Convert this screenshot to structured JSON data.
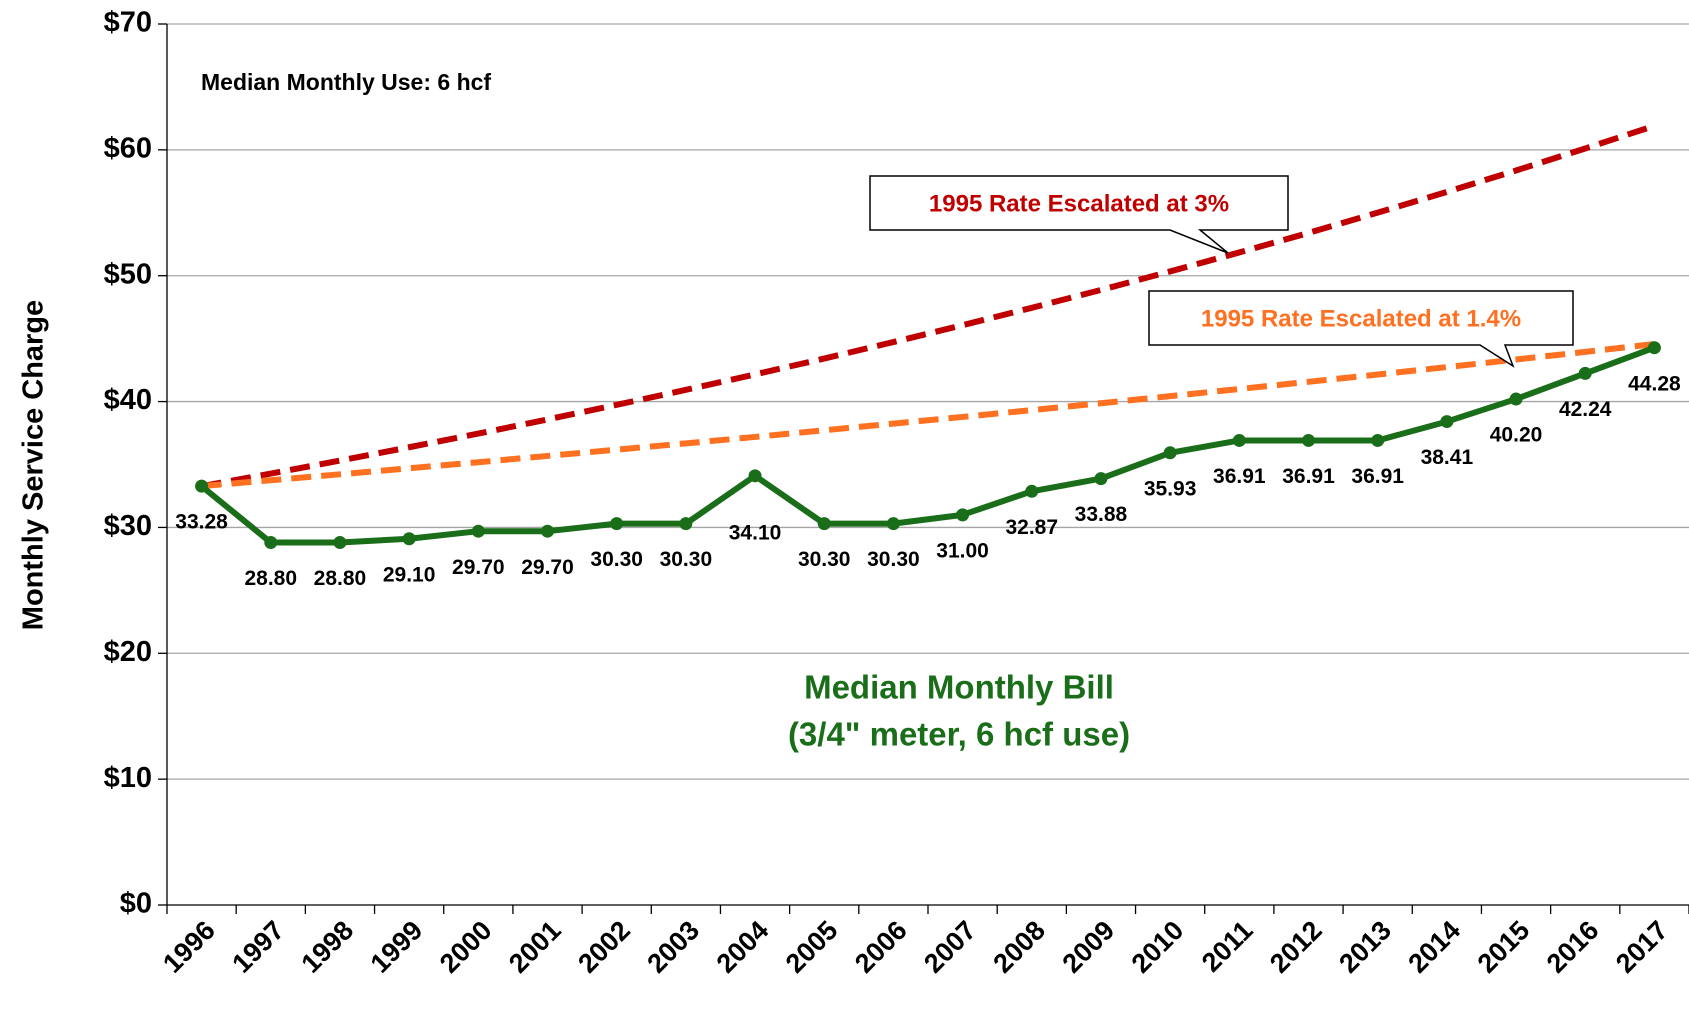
{
  "chart_data": {
    "type": "line",
    "annotation_top": "Median Monthly Use: 6 hcf",
    "ylabel": "Monthly Service Charge",
    "series_annotation": [
      "Median Monthly Bill",
      "(3/4\" meter, 6 hcf use)"
    ],
    "callouts": [
      "1995 Rate Escalated at 3%",
      "1995 Rate Escalated at 1.4%"
    ],
    "categories": [
      "1996",
      "1997",
      "1998",
      "1999",
      "2000",
      "2001",
      "2002",
      "2003",
      "2004",
      "2005",
      "2006",
      "2007",
      "2008",
      "2009",
      "2010",
      "2011",
      "2012",
      "2013",
      "2014",
      "2015",
      "2016",
      "2017"
    ],
    "ylim": [
      0,
      70
    ],
    "yticks": [
      {
        "value": 0,
        "label": "$0"
      },
      {
        "value": 10,
        "label": "$10"
      },
      {
        "value": 20,
        "label": "$20"
      },
      {
        "value": 30,
        "label": "$30"
      },
      {
        "value": 40,
        "label": "$40"
      },
      {
        "value": 50,
        "label": "$50"
      },
      {
        "value": 60,
        "label": "$60"
      },
      {
        "value": 70,
        "label": "$70"
      }
    ],
    "grid": true,
    "series": [
      {
        "name": "1995 Rate Escalated at 3%",
        "color": "#c00000",
        "dashed": true,
        "values": [
          33.28,
          34.28,
          35.31,
          36.37,
          37.46,
          38.58,
          39.74,
          40.93,
          42.16,
          43.42,
          44.73,
          46.07,
          47.45,
          48.87,
          50.34,
          51.85,
          53.4,
          55.01,
          56.66,
          58.36,
          60.11,
          61.91
        ]
      },
      {
        "name": "1995 Rate Escalated at 1.4%",
        "color": "#ff7020",
        "dashed": true,
        "values": [
          33.28,
          33.75,
          34.22,
          34.7,
          35.18,
          35.68,
          36.18,
          36.68,
          37.19,
          37.72,
          38.25,
          38.78,
          39.32,
          39.87,
          40.43,
          41.0,
          41.57,
          42.15,
          42.74,
          43.34,
          43.95,
          44.57
        ]
      },
      {
        "name": "Median Monthly Bill",
        "color": "#1a6e1a",
        "dashed": false,
        "markers": true,
        "values": [
          33.28,
          28.8,
          28.8,
          29.1,
          29.7,
          29.7,
          30.3,
          30.3,
          34.1,
          30.3,
          30.3,
          31.0,
          32.87,
          33.88,
          35.93,
          36.91,
          36.91,
          36.91,
          38.41,
          40.2,
          42.24,
          44.28
        ],
        "value_labels": [
          "33.28",
          "28.80",
          "28.80",
          "29.10",
          "29.70",
          "29.70",
          "30.30",
          "30.30",
          "34.10",
          "30.30",
          "30.30",
          "31.00",
          "32.87",
          "33.88",
          "35.93",
          "36.91",
          "36.91",
          "36.91",
          "38.41",
          "40.20",
          "42.24",
          "44.28"
        ]
      }
    ]
  }
}
